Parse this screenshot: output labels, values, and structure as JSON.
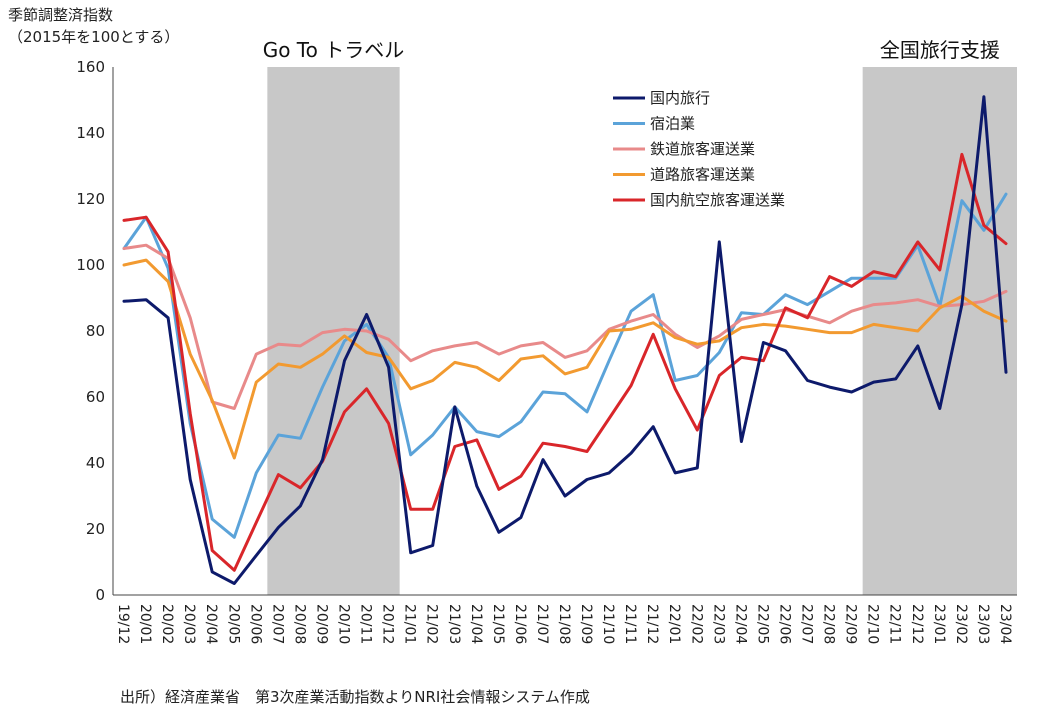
{
  "y_axis_title": [
    "季節調整済指数",
    "（2015年を100とする）"
  ],
  "source_note": "出所）経済産業省　第3次産業活動指数よりNRI社会情報システム作成",
  "chart_data": {
    "type": "line",
    "ylim": [
      0,
      160
    ],
    "yticks": [
      0,
      20,
      40,
      60,
      80,
      100,
      120,
      140,
      160
    ],
    "grid": false,
    "legend_position": "top-right",
    "categories": [
      "19/12",
      "20/01",
      "20/02",
      "20/03",
      "20/04",
      "20/05",
      "20/06",
      "20/07",
      "20/08",
      "20/09",
      "20/10",
      "20/11",
      "20/12",
      "21/01",
      "21/02",
      "21/03",
      "21/04",
      "21/05",
      "21/06",
      "21/07",
      "21/08",
      "21/09",
      "21/10",
      "21/11",
      "21/12",
      "22/01",
      "22/02",
      "22/03",
      "22/04",
      "22/05",
      "22/06",
      "22/07",
      "22/08",
      "22/09",
      "22/10",
      "22/11",
      "22/12",
      "23/01",
      "23/02",
      "23/03",
      "23/04"
    ],
    "shaded_periods": [
      {
        "label": "Go To トラベル",
        "from": "20/07",
        "to": "20/12",
        "color": "#c8c8c8"
      },
      {
        "label": "全国旅行支援",
        "from": "22/10",
        "to": "23/04",
        "color": "#c8c8c8"
      }
    ],
    "series": [
      {
        "name": "国内旅行",
        "color": "#0d1a6b",
        "values": [
          89,
          89.5,
          84,
          35,
          7,
          3.5,
          12,
          20.5,
          27,
          41,
          71,
          85,
          69,
          12.8,
          15,
          57,
          33,
          19,
          23.5,
          41,
          30,
          35,
          37,
          43,
          51,
          37,
          38.5,
          107,
          46.5,
          76.5,
          74,
          65,
          63,
          61.5,
          64.5,
          65.5,
          75.5,
          56.5,
          88,
          151,
          67.5
        ]
      },
      {
        "name": "宿泊業",
        "color": "#5ba3d9",
        "values": [
          105,
          114.5,
          99,
          52,
          23,
          17.5,
          37,
          48.5,
          47.5,
          63,
          77,
          82,
          72,
          42.5,
          48.5,
          57,
          49.5,
          48,
          52.5,
          61.5,
          61,
          55.5,
          71,
          86,
          91,
          65,
          66.5,
          73.5,
          85.5,
          85,
          91,
          88,
          92,
          96,
          96,
          96,
          106,
          87.5,
          119.5,
          110.5,
          121.5
        ]
      },
      {
        "name": "鉄道旅客運送業",
        "color": "#e88a8a",
        "values": [
          105,
          106,
          102,
          84,
          58.5,
          56.5,
          73,
          76,
          75.5,
          79.5,
          80.5,
          80,
          77.5,
          71,
          74,
          75.5,
          76.5,
          73,
          75.5,
          76.5,
          72,
          74,
          80.5,
          83,
          85,
          79,
          75,
          78.5,
          83.5,
          85,
          86.5,
          84.5,
          82.5,
          86,
          88,
          88.5,
          89.5,
          87.5,
          88,
          89,
          92
        ]
      },
      {
        "name": "道路旅客運送業",
        "color": "#f29a30",
        "values": [
          100,
          101.5,
          95,
          73,
          59,
          41.5,
          64.5,
          70,
          69,
          73,
          78.5,
          73.5,
          72,
          62.5,
          65,
          70.5,
          69,
          65,
          71.5,
          72.5,
          67,
          69,
          80,
          80.5,
          82.5,
          78,
          76,
          77,
          81,
          82,
          81.5,
          80.5,
          79.5,
          79.5,
          82,
          81,
          80,
          87,
          90.5,
          86,
          83
        ]
      },
      {
        "name": "国内航空旅客運送業",
        "color": "#d9262a",
        "values": [
          113.5,
          114.5,
          104,
          55,
          13.5,
          7.5,
          22,
          36.5,
          32.5,
          40.5,
          55.5,
          62.5,
          52,
          26,
          26,
          45,
          47,
          32,
          36,
          46,
          45,
          43.5,
          53.5,
          63.5,
          79,
          62.5,
          50,
          66.5,
          72,
          71,
          87,
          84,
          96.5,
          93.5,
          98,
          96.5,
          107,
          98.5,
          133.5,
          112,
          106.5
        ]
      }
    ]
  }
}
